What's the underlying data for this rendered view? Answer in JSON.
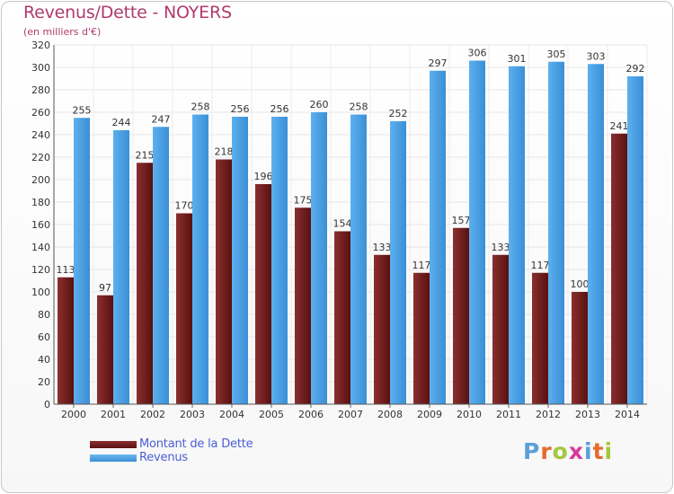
{
  "title": "Revenus/Dette - NOYERS",
  "subtitle": "(en milliers d'€)",
  "logo": [
    "P",
    "r",
    "o",
    "x",
    "i",
    "t",
    "i"
  ],
  "logo_colors": [
    "#5aa0d8",
    "#e46a2e",
    "#a2c83a",
    "#d83a9a",
    "#5aa0d8",
    "#e46a2e",
    "#a2c83a"
  ],
  "legend": [
    {
      "name": "Montant de la Dette",
      "color": "#6b1b1b"
    },
    {
      "name": "Revenus",
      "color": "#4ca3e6"
    }
  ],
  "chart_data": {
    "type": "bar",
    "title": "Revenus/Dette - NOYERS",
    "subtitle": "(en milliers d'€)",
    "categories": [
      "2000",
      "2001",
      "2002",
      "2003",
      "2004",
      "2005",
      "2006",
      "2007",
      "2008",
      "2009",
      "2010",
      "2011",
      "2012",
      "2013",
      "2014"
    ],
    "series": [
      {
        "name": "Montant de la Dette",
        "color": "#6b1b1b",
        "values": [
          113,
          97,
          215,
          170,
          218,
          196,
          175,
          154,
          133,
          117,
          157,
          133,
          117,
          100,
          241
        ]
      },
      {
        "name": "Revenus",
        "color": "#4ca3e6",
        "values": [
          255,
          244,
          247,
          258,
          256,
          256,
          260,
          258,
          252,
          297,
          306,
          301,
          305,
          303,
          292
        ]
      }
    ],
    "ylim": [
      0,
      320
    ],
    "yticks": [
      0,
      20,
      40,
      60,
      80,
      100,
      120,
      140,
      160,
      180,
      200,
      220,
      240,
      260,
      280,
      300,
      320
    ],
    "grid": true,
    "legend_position": "bottom-left"
  }
}
